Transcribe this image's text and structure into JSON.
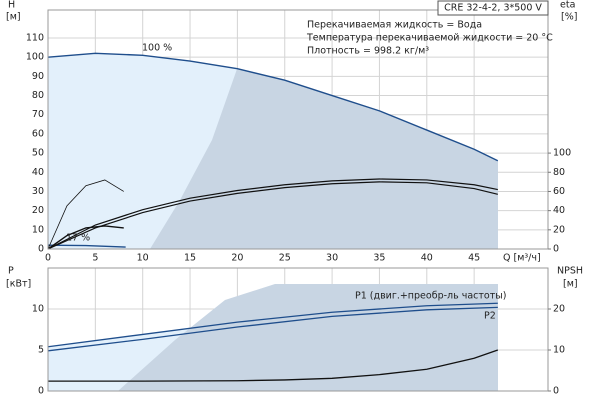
{
  "chart_data": [
    {
      "type": "line",
      "box_label": "CRE 32-4-2, 3*500 V",
      "notes": [
        "Перекачиваемая жидкость = Вода",
        "Температура перекачиваемой жидкости = 20 °C",
        "Плотность = 998.2 кг/м³"
      ],
      "ylabel": "H",
      "yunit": "[м]",
      "y2label": "eta",
      "y2unit": "[%]",
      "xlabel": "Q [м³/ч]",
      "xlim": [
        0,
        52.8
      ],
      "xticks": [
        0,
        5,
        10,
        15,
        20,
        25,
        30,
        35,
        40,
        45
      ],
      "ylim": [
        0,
        124.6
      ],
      "yticks": [
        0,
        10,
        20,
        30,
        40,
        50,
        60,
        70,
        80,
        90,
        100,
        110
      ],
      "y2lim": [
        0,
        249.2
      ],
      "y2ticks": [
        0,
        20,
        40,
        60,
        80,
        100
      ],
      "grid": true,
      "series": [
        {
          "name": "100 %",
          "color": "#1f4e8c",
          "area_color": "#e3f0fb",
          "width": 1.4,
          "x": [
            0,
            5,
            10,
            15,
            20,
            25,
            30,
            35,
            40,
            45,
            47.5
          ],
          "values": [
            100,
            102,
            101,
            98,
            94,
            88,
            80,
            72,
            62,
            52,
            46
          ]
        },
        {
          "name": "17 %",
          "color": "#1f4e8c",
          "width": 1.4,
          "x": [
            0,
            4,
            8.2
          ],
          "values": [
            2,
            1.8,
            1
          ]
        },
        {
          "color": "#111",
          "width": 1.2,
          "axis": "y2",
          "x": [
            0,
            5,
            10,
            15,
            20,
            25,
            30,
            35,
            40,
            45,
            47.5
          ],
          "values": [
            0,
            25,
            41,
            53,
            61,
            67,
            71,
            73,
            72,
            67,
            62
          ]
        },
        {
          "color": "#111",
          "width": 1.2,
          "axis": "y2",
          "x": [
            0,
            5,
            10,
            15,
            20,
            25,
            30,
            35,
            40,
            45,
            47.5
          ],
          "values": [
            0,
            22,
            38,
            50,
            58,
            64,
            68,
            70,
            69,
            63,
            57
          ]
        },
        {
          "color": "#111",
          "width": 0.8,
          "axis": "y2",
          "x": [
            0,
            2,
            4,
            6,
            8
          ],
          "values": [
            0,
            45,
            66,
            72,
            60
          ]
        },
        {
          "color": "#111",
          "width": 1.4,
          "axis": "y2",
          "x": [
            0,
            2,
            4,
            6,
            8
          ],
          "values": [
            0,
            14,
            22,
            24,
            22
          ]
        }
      ]
    },
    {
      "type": "line",
      "ylabel": "P",
      "yunit": "[кВт]",
      "y2label": "NPSH",
      "y2unit": "[м]",
      "xlim": [
        0,
        52.8
      ],
      "ylim": [
        0,
        15
      ],
      "yticks": [
        0,
        5,
        10
      ],
      "y2lim": [
        0,
        30
      ],
      "y2ticks": [
        0,
        10,
        20
      ],
      "grid": true,
      "series": [
        {
          "name": "P1 (двиг.+преобр-ль частоты)",
          "color": "#1f4e8c",
          "area_color": "#e3f0fb",
          "width": 1.3,
          "x": [
            0,
            10,
            20,
            30,
            40,
            47.5
          ],
          "values": [
            5.4,
            6.9,
            8.4,
            9.6,
            10.4,
            10.7
          ]
        },
        {
          "name": "P2",
          "color": "#1f4e8c",
          "width": 1.3,
          "x": [
            0,
            10,
            20,
            30,
            40,
            47.5
          ],
          "values": [
            4.9,
            6.3,
            7.8,
            9.1,
            9.9,
            10.2
          ]
        },
        {
          "color": "#111",
          "width": 1.3,
          "axis": "y2",
          "x": [
            0,
            10,
            20,
            25,
            30,
            35,
            40,
            45,
            47.5
          ],
          "values": [
            2.4,
            2.4,
            2.5,
            2.7,
            3.1,
            4,
            5.3,
            8,
            10
          ]
        }
      ]
    }
  ]
}
